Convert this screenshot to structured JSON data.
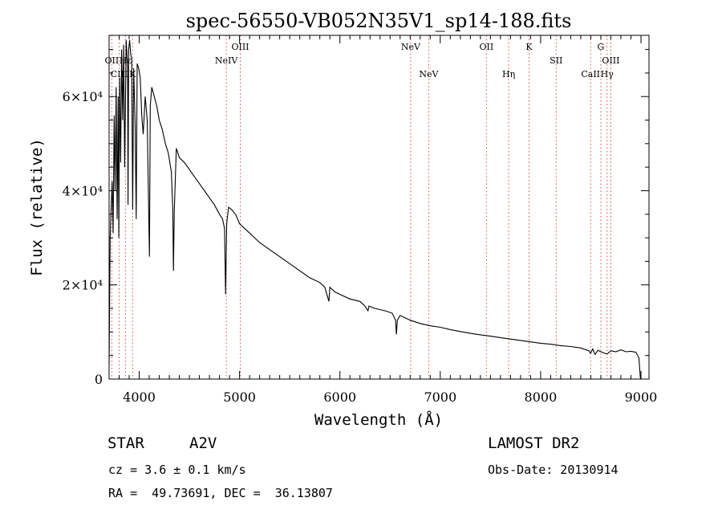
{
  "chart_data": {
    "type": "line",
    "title": "spec-56550-VB052N35V1_sp14-188.fits",
    "xlabel": "Wavelength (Å)",
    "ylabel": "Flux (relative)",
    "xlim": [
      3700,
      9080
    ],
    "ylim": [
      0,
      73000
    ],
    "x_ticks": [
      {
        "value": 4000,
        "label": "4000"
      },
      {
        "value": 5000,
        "label": "5000"
      },
      {
        "value": 6000,
        "label": "6000"
      },
      {
        "value": 7000,
        "label": "7000"
      },
      {
        "value": 8000,
        "label": "8000"
      },
      {
        "value": 9000,
        "label": "9000"
      }
    ],
    "y_ticks": [
      {
        "value": 0,
        "label": "0"
      },
      {
        "value": 20000,
        "label": "2×10⁴"
      },
      {
        "value": 40000,
        "label": "4×10⁴"
      },
      {
        "value": 60000,
        "label": "6×10⁴"
      }
    ],
    "grid": false,
    "series": [
      {
        "x": [
          3700,
          3710,
          3720,
          3730,
          3740,
          3750,
          3760,
          3770,
          3780,
          3790,
          3797,
          3805,
          3815,
          3825,
          3835,
          3845,
          3855,
          3870,
          3885,
          3889,
          3895,
          3905,
          3915,
          3925,
          3935,
          3945,
          3960,
          3970,
          3980,
          3995,
          4010,
          4025,
          4040,
          4060,
          4080,
          4095,
          4102,
          4110,
          4125,
          4150,
          4175,
          4200,
          4230,
          4260,
          4290,
          4320,
          4335,
          4341,
          4350,
          4370,
          4400,
          4450,
          4500,
          4550,
          4600,
          4650,
          4700,
          4750,
          4800,
          4830,
          4850,
          4861,
          4872,
          4890,
          4920,
          4960,
          5000,
          5100,
          5200,
          5300,
          5400,
          5500,
          5600,
          5700,
          5800,
          5850,
          5890,
          5900,
          5950,
          6000,
          6100,
          6200,
          6250,
          6280,
          6290,
          6350,
          6450,
          6520,
          6555,
          6563,
          6572,
          6600,
          6700,
          6800,
          6900,
          7000,
          7100,
          7200,
          7300,
          7400,
          7500,
          7600,
          7700,
          7800,
          7900,
          8000,
          8100,
          8200,
          8300,
          8400,
          8480,
          8498,
          8520,
          8542,
          8570,
          8600,
          8662,
          8700,
          8750,
          8800,
          8850,
          8900,
          8950,
          8980,
          8985,
          8990,
          8993,
          8996,
          9000
        ],
        "y": [
          3000,
          30000,
          36000,
          42000,
          31000,
          56000,
          40000,
          62000,
          34000,
          60000,
          30000,
          64000,
          46000,
          70000,
          55000,
          71000,
          45000,
          72000,
          66000,
          37000,
          70000,
          72000,
          69000,
          68000,
          36000,
          66000,
          54000,
          34000,
          67000,
          66000,
          64000,
          56000,
          52000,
          60000,
          55000,
          35000,
          26000,
          58000,
          62000,
          60000,
          58000,
          55000,
          53000,
          50000,
          48000,
          44000,
          36000,
          23000,
          36000,
          49000,
          47000,
          46000,
          44500,
          43000,
          41500,
          40000,
          38500,
          37000,
          35000,
          34000,
          32000,
          18000,
          33000,
          36500,
          36000,
          35000,
          33000,
          31000,
          29000,
          27500,
          26000,
          24500,
          23000,
          21500,
          20500,
          19500,
          16500,
          19500,
          18500,
          18000,
          17000,
          16500,
          15500,
          14500,
          15500,
          15000,
          14500,
          14000,
          12500,
          9500,
          12500,
          13500,
          12500,
          11800,
          11300,
          11000,
          10500,
          10100,
          9700,
          9400,
          9100,
          8800,
          8500,
          8200,
          7900,
          7600,
          7400,
          7100,
          6900,
          6600,
          6000,
          5500,
          6400,
          5200,
          6100,
          5800,
          5300,
          6000,
          5800,
          6200,
          5800,
          5900,
          5700,
          4500,
          3000,
          1500,
          500,
          100,
          0
        ]
      }
    ],
    "line_markers": [
      {
        "label": "OII",
        "wavelength": 3727,
        "row": 2
      },
      {
        "label": "CIII",
        "wavelength": 3800,
        "row": 3
      },
      {
        "label": "Hε",
        "wavelength": 3863,
        "row": 2
      },
      {
        "label": "K",
        "wavelength": 3934,
        "row": 3
      },
      {
        "label": "NeIV",
        "wavelength": 4868,
        "row": 2
      },
      {
        "label": "OIII",
        "wavelength": 5007,
        "row": 1
      },
      {
        "label": "NeV",
        "wavelength": 6705,
        "row": 1
      },
      {
        "label": "NeV",
        "wavelength": 6885,
        "row": 3
      },
      {
        "label": "OII",
        "wavelength": 7460,
        "row": 1
      },
      {
        "label": "Hη",
        "wavelength": 7682,
        "row": 3
      },
      {
        "label": "K",
        "wavelength": 7885,
        "row": 1
      },
      {
        "label": "SII",
        "wavelength": 8155,
        "row": 2
      },
      {
        "label": "CaII",
        "wavelength": 8498,
        "row": 3
      },
      {
        "label": "G",
        "wavelength": 8600,
        "row": 1
      },
      {
        "label": "Hγ",
        "wavelength": 8662,
        "row": 3
      },
      {
        "label": "OIII",
        "wavelength": 8700,
        "row": 2
      }
    ]
  },
  "info": {
    "object_type": "STAR",
    "spectral_class": "A2V",
    "survey": "LAMOST DR2",
    "cz": "cz = 3.6 ± 0.1 km/s",
    "obs_date": "Obs-Date: 20130914",
    "coords": "RA =  49.73691, DEC =  36.13807"
  },
  "colors": {
    "spectrum": "#000000",
    "axes": "#000000",
    "marker_lines": "#d94a4a",
    "background": "#ffffff"
  }
}
